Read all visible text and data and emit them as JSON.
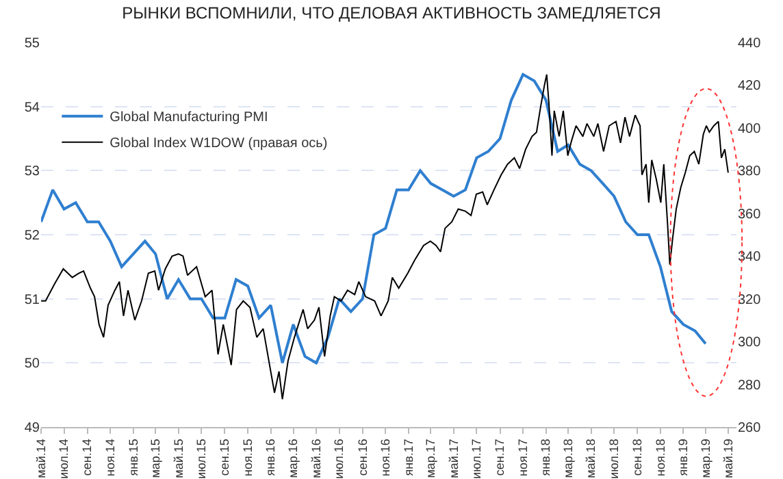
{
  "chart_data": {
    "type": "line",
    "title": "РЫНКИ ВСПОМНИЛИ, ЧТО ДЕЛОВАЯ АКТИВНОСТЬ ЗАМЕДЛЯЕТСЯ",
    "xlim": [
      "2014-05-01",
      "2019-05-22"
    ],
    "xticks": [
      {
        "value": "2014-05-01",
        "label": "май.14"
      },
      {
        "value": "2014-07-01",
        "label": "июл.14"
      },
      {
        "value": "2014-09-01",
        "label": "сен.14"
      },
      {
        "value": "2014-11-01",
        "label": "ноя.14"
      },
      {
        "value": "2015-01-01",
        "label": "янв.15"
      },
      {
        "value": "2015-03-01",
        "label": "мар.15"
      },
      {
        "value": "2015-05-01",
        "label": "май.15"
      },
      {
        "value": "2015-07-01",
        "label": "июл.15"
      },
      {
        "value": "2015-09-01",
        "label": "сен.15"
      },
      {
        "value": "2015-11-01",
        "label": "ноя.15"
      },
      {
        "value": "2016-01-01",
        "label": "янв.16"
      },
      {
        "value": "2016-03-01",
        "label": "мар.16"
      },
      {
        "value": "2016-05-01",
        "label": "май.16"
      },
      {
        "value": "2016-07-01",
        "label": "июл.16"
      },
      {
        "value": "2016-09-01",
        "label": "сен.16"
      },
      {
        "value": "2016-11-01",
        "label": "ноя.16"
      },
      {
        "value": "2017-01-01",
        "label": "янв.17"
      },
      {
        "value": "2017-03-01",
        "label": "мар.17"
      },
      {
        "value": "2017-05-01",
        "label": "май.17"
      },
      {
        "value": "2017-07-01",
        "label": "июл.17"
      },
      {
        "value": "2017-09-01",
        "label": "сен.17"
      },
      {
        "value": "2017-11-01",
        "label": "ноя.17"
      },
      {
        "value": "2018-01-01",
        "label": "янв.18"
      },
      {
        "value": "2018-03-01",
        "label": "мар.18"
      },
      {
        "value": "2018-05-01",
        "label": "май.18"
      },
      {
        "value": "2018-07-01",
        "label": "июл.18"
      },
      {
        "value": "2018-09-01",
        "label": "сен.18"
      },
      {
        "value": "2018-11-01",
        "label": "ноя.18"
      },
      {
        "value": "2019-01-01",
        "label": "янв.19"
      },
      {
        "value": "2019-03-01",
        "label": "мар.19"
      },
      {
        "value": "2019-05-01",
        "label": "май.19"
      }
    ],
    "ylim": [
      49,
      55
    ],
    "yticks": [
      49,
      50,
      51,
      52,
      53,
      54,
      55
    ],
    "y2lim": [
      260,
      440
    ],
    "y2ticks": [
      260,
      280,
      300,
      320,
      340,
      360,
      380,
      400,
      420,
      440
    ],
    "grid": "y",
    "legend": "top left",
    "marker": "none",
    "line_style": "solid",
    "series": [
      {
        "name": "Global Manufacturing PMI",
        "color": "#2f7fd0",
        "x": [
          "2014-05",
          "2014-06",
          "2014-07",
          "2014-08",
          "2014-09",
          "2014-10",
          "2014-11",
          "2014-12",
          "2015-01",
          "2015-02",
          "2015-03",
          "2015-04",
          "2015-05",
          "2015-06",
          "2015-07",
          "2015-08",
          "2015-09",
          "2015-10",
          "2015-11",
          "2015-12",
          "2016-01",
          "2016-02",
          "2016-03",
          "2016-04",
          "2016-05",
          "2016-06",
          "2016-07",
          "2016-08",
          "2016-09",
          "2016-10",
          "2016-11",
          "2016-12",
          "2017-01",
          "2017-02",
          "2017-03",
          "2017-04",
          "2017-05",
          "2017-06",
          "2017-07",
          "2017-08",
          "2017-09",
          "2017-10",
          "2017-11",
          "2017-12",
          "2018-01",
          "2018-02",
          "2018-03",
          "2018-04",
          "2018-05",
          "2018-06",
          "2018-07",
          "2018-08",
          "2018-09",
          "2018-10",
          "2018-11",
          "2018-12",
          "2019-01",
          "2019-02",
          "2019-03"
        ],
        "values": [
          52.2,
          52.7,
          52.4,
          52.5,
          52.2,
          52.2,
          51.9,
          51.5,
          51.7,
          51.9,
          51.7,
          51.0,
          51.3,
          51.0,
          51.0,
          50.7,
          50.7,
          51.3,
          51.2,
          50.7,
          50.9,
          50.0,
          50.6,
          50.1,
          50.0,
          50.4,
          51.0,
          50.8,
          51.0,
          52.0,
          52.1,
          52.7,
          52.7,
          53.0,
          52.8,
          52.7,
          52.6,
          52.7,
          53.2,
          53.3,
          53.5,
          54.1,
          54.5,
          54.4,
          54.1,
          53.3,
          53.4,
          53.1,
          53.0,
          52.8,
          52.6,
          52.2,
          52.0,
          52.0,
          51.5,
          50.8,
          50.6,
          50.5,
          50.3
        ]
      },
      {
        "name": "Global Index W1DOW (правая ось)",
        "color": "#000000",
        "axis": "y2",
        "x": [
          "2014-05-01",
          "2014-05-13",
          "2014-06-06",
          "2014-06-29",
          "2014-07-23",
          "2014-08-10",
          "2014-08-22",
          "2014-09-09",
          "2014-09-20",
          "2014-10-02",
          "2014-10-14",
          "2014-10-26",
          "2014-11-13",
          "2014-11-25",
          "2014-12-06",
          "2014-12-18",
          "2015-01-05",
          "2015-01-23",
          "2015-02-10",
          "2015-02-27",
          "2015-03-09",
          "2015-03-27",
          "2015-04-14",
          "2015-05-01",
          "2015-05-13",
          "2015-05-25",
          "2015-06-18",
          "2015-07-11",
          "2015-07-29",
          "2015-08-14",
          "2015-08-28",
          "2015-09-18",
          "2015-10-02",
          "2015-10-20",
          "2015-11-07",
          "2015-11-25",
          "2015-12-12",
          "2015-12-30",
          "2016-01-11",
          "2016-01-23",
          "2016-02-01",
          "2016-02-16",
          "2016-03-04",
          "2016-03-27",
          "2016-04-08",
          "2016-04-26",
          "2016-05-08",
          "2016-05-23",
          "2016-06-07",
          "2016-06-18",
          "2016-07-06",
          "2016-07-23",
          "2016-08-11",
          "2016-08-22",
          "2016-09-09",
          "2016-10-03",
          "2016-10-20",
          "2016-11-08",
          "2016-11-19",
          "2016-12-06",
          "2016-12-30",
          "2017-01-17",
          "2017-02-10",
          "2017-02-28",
          "2017-03-15",
          "2017-03-27",
          "2017-04-08",
          "2017-04-26",
          "2017-05-13",
          "2017-06-01",
          "2017-06-16",
          "2017-06-30",
          "2017-07-17",
          "2017-07-29",
          "2017-08-16",
          "2017-09-04",
          "2017-09-21",
          "2017-10-09",
          "2017-10-23",
          "2017-11-08",
          "2017-11-25",
          "2017-12-07",
          "2017-12-18",
          "2017-12-28",
          "2018-01-03",
          "2018-01-09",
          "2018-01-17",
          "2018-01-23",
          "2018-02-05",
          "2018-02-16",
          "2018-02-28",
          "2018-03-10",
          "2018-03-22",
          "2018-04-09",
          "2018-04-20",
          "2018-05-08",
          "2018-05-19",
          "2018-06-03",
          "2018-06-18",
          "2018-07-06",
          "2018-07-18",
          "2018-07-30",
          "2018-08-11",
          "2018-08-26",
          "2018-09-08",
          "2018-09-13",
          "2018-09-24",
          "2018-10-01",
          "2018-10-09",
          "2018-10-21",
          "2018-11-02",
          "2018-11-10",
          "2018-11-20",
          "2018-11-26",
          "2018-12-04",
          "2018-12-13",
          "2018-12-25",
          "2019-01-06",
          "2019-01-18",
          "2019-01-30",
          "2019-02-11",
          "2019-02-23",
          "2019-03-03",
          "2019-03-11",
          "2019-03-23",
          "2019-04-04",
          "2019-04-12",
          "2019-04-21",
          "2019-04-30"
        ],
        "values": [
          319,
          319,
          327,
          334,
          330,
          332,
          333,
          325,
          321,
          308,
          302,
          317,
          324,
          328,
          312,
          324,
          310,
          319,
          332,
          333,
          324,
          334,
          340,
          341,
          340,
          331,
          335,
          321,
          324,
          294,
          308,
          289,
          315,
          319,
          316,
          302,
          306,
          288,
          276,
          286,
          273,
          291,
          302,
          315,
          306,
          310,
          316,
          293,
          312,
          321,
          319,
          324,
          322,
          328,
          321,
          319,
          312,
          319,
          330,
          325,
          332,
          338,
          345,
          347,
          345,
          342,
          353,
          356,
          362,
          361,
          359,
          369,
          370,
          364,
          371,
          378,
          383,
          386,
          381,
          390,
          396,
          398,
          410,
          420,
          425,
          411,
          387,
          408,
          396,
          408,
          387,
          394,
          401,
          396,
          402,
          396,
          402,
          389,
          401,
          403,
          393,
          405,
          396,
          406,
          401,
          378,
          383,
          365,
          385,
          376,
          365,
          383,
          355,
          336,
          349,
          362,
          372,
          379,
          387,
          389,
          383,
          397,
          401,
          398,
          401,
          403,
          386,
          390,
          379
        ]
      }
    ]
  }
}
